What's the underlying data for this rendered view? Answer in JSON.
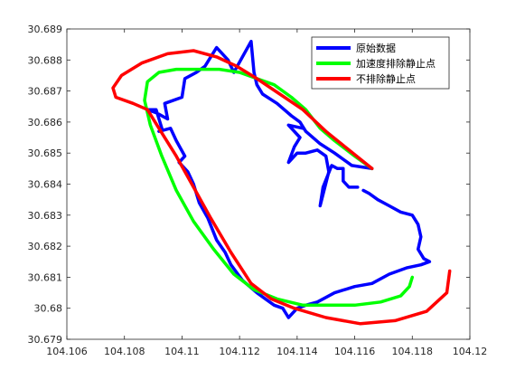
{
  "chart_data": {
    "type": "line",
    "title": "",
    "xlabel": "",
    "ylabel": "",
    "xlim": [
      104.106,
      104.12
    ],
    "ylim": [
      30.679,
      30.689
    ],
    "grid": false,
    "legend_position": "top-right",
    "x_ticks": [
      "104.106",
      "104.108",
      "104.11",
      "104.112",
      "104.114",
      "104.116",
      "104.118",
      "104.12"
    ],
    "y_ticks": [
      "30.679",
      "30.68",
      "30.681",
      "30.682",
      "30.683",
      "30.684",
      "30.685",
      "30.686",
      "30.687",
      "30.688",
      "30.689"
    ],
    "x_tick_values": [
      104.106,
      104.108,
      104.11,
      104.112,
      104.114,
      104.116,
      104.118,
      104.12
    ],
    "y_tick_values": [
      30.679,
      30.68,
      30.681,
      30.682,
      30.683,
      30.684,
      30.685,
      30.686,
      30.687,
      30.688,
      30.689
    ],
    "series": [
      {
        "name": "原始数据",
        "color": "#0000ff",
        "points": [
          [
            104.1166,
            30.6845
          ],
          [
            104.1159,
            30.6846
          ],
          [
            104.1153,
            30.685
          ],
          [
            104.1148,
            30.6853
          ],
          [
            104.1143,
            30.6857
          ],
          [
            104.1141,
            30.686
          ],
          [
            104.1138,
            30.6862
          ],
          [
            104.1133,
            30.6866
          ],
          [
            104.1128,
            30.6869
          ],
          [
            104.1126,
            30.6872
          ],
          [
            104.1125,
            30.6876
          ],
          [
            104.1124,
            30.6886
          ],
          [
            104.1118,
            30.6876
          ],
          [
            104.1116,
            30.688
          ],
          [
            104.1112,
            30.6884
          ],
          [
            104.1108,
            30.6878
          ],
          [
            104.1105,
            30.6876
          ],
          [
            104.1103,
            30.6875
          ],
          [
            104.1101,
            30.6874
          ],
          [
            104.11,
            30.6868
          ],
          [
            104.1094,
            30.6866
          ],
          [
            104.1095,
            30.6861
          ],
          [
            104.1091,
            30.6863
          ],
          [
            104.1088,
            30.6864
          ],
          [
            104.1091,
            30.6864
          ],
          [
            104.1093,
            30.6858
          ],
          [
            104.1092,
            30.6857
          ],
          [
            104.1096,
            30.6858
          ],
          [
            104.1098,
            30.6854
          ],
          [
            104.1101,
            30.6849
          ],
          [
            104.1099,
            30.6847
          ],
          [
            104.1102,
            30.6844
          ],
          [
            104.1104,
            30.684
          ],
          [
            104.1106,
            30.6834
          ],
          [
            104.1109,
            30.6829
          ],
          [
            104.1112,
            30.6822
          ],
          [
            104.1115,
            30.6818
          ],
          [
            104.1117,
            30.6814
          ],
          [
            104.1121,
            30.6809
          ],
          [
            104.1126,
            30.6805
          ],
          [
            104.1129,
            30.6803
          ],
          [
            104.1132,
            30.6801
          ],
          [
            104.1135,
            30.68
          ],
          [
            104.1137,
            30.6797
          ],
          [
            104.114,
            30.68
          ],
          [
            104.1143,
            30.6801
          ],
          [
            104.1147,
            30.6802
          ],
          [
            104.1153,
            30.6805
          ],
          [
            104.116,
            30.6807
          ],
          [
            104.1166,
            30.6808
          ],
          [
            104.1172,
            30.6811
          ],
          [
            104.1178,
            30.6813
          ],
          [
            104.1183,
            30.6814
          ],
          [
            104.1186,
            30.6815
          ],
          [
            104.1184,
            30.6816
          ],
          [
            104.1182,
            30.6819
          ],
          [
            104.1183,
            30.6823
          ],
          [
            104.1182,
            30.6827
          ],
          [
            104.118,
            30.683
          ],
          [
            104.1176,
            30.6831
          ],
          [
            104.1172,
            30.6833
          ],
          [
            104.1168,
            30.6835
          ],
          [
            104.1165,
            30.6837
          ],
          [
            104.1163,
            30.6838
          ],
          null,
          [
            104.1161,
            30.6839
          ],
          [
            104.1158,
            30.6839
          ],
          [
            104.1156,
            30.6841
          ],
          [
            104.1156,
            30.6845
          ],
          [
            104.1154,
            30.6845
          ],
          [
            104.1152,
            30.6846
          ],
          [
            104.1149,
            30.6839
          ],
          [
            104.1148,
            30.6833
          ],
          [
            104.1151,
            30.6844
          ],
          [
            104.115,
            30.6849
          ],
          [
            104.1147,
            30.6851
          ],
          [
            104.1143,
            30.685
          ],
          [
            104.114,
            30.685
          ],
          [
            104.1137,
            30.6847
          ],
          [
            104.1139,
            30.6852
          ],
          [
            104.1141,
            30.6855
          ],
          [
            104.1137,
            30.6859
          ],
          [
            104.1142,
            30.6858
          ]
        ]
      },
      {
        "name": "加速度排除静止点",
        "color": "#00ff00",
        "points": [
          [
            104.1166,
            30.6845
          ],
          [
            104.116,
            30.6849
          ],
          [
            104.1153,
            30.6854
          ],
          [
            104.1148,
            30.6858
          ],
          [
            104.1143,
            30.6864
          ],
          [
            104.1138,
            30.6868
          ],
          [
            104.1132,
            30.6872
          ],
          [
            104.1126,
            30.6874
          ],
          [
            104.112,
            30.6876
          ],
          [
            104.1113,
            30.6877
          ],
          [
            104.1105,
            30.6877
          ],
          [
            104.1098,
            30.6877
          ],
          [
            104.1092,
            30.6876
          ],
          [
            104.1088,
            30.6873
          ],
          [
            104.1087,
            30.6867
          ],
          [
            104.1089,
            30.6859
          ],
          [
            104.1093,
            30.6849
          ],
          [
            104.1098,
            30.6838
          ],
          [
            104.1104,
            30.6828
          ],
          [
            104.1111,
            30.6819
          ],
          [
            104.1118,
            30.6811
          ],
          [
            104.1125,
            30.6806
          ],
          [
            104.1133,
            30.6803
          ],
          [
            104.1142,
            30.6801
          ],
          [
            104.1151,
            30.6801
          ],
          [
            104.116,
            30.6801
          ],
          [
            104.1169,
            30.6802
          ],
          [
            104.1176,
            30.6804
          ],
          [
            104.1179,
            30.6807
          ],
          [
            104.118,
            30.681
          ]
        ]
      },
      {
        "name": "不排除静止点",
        "color": "#ff0000",
        "points": [
          [
            104.1166,
            30.6845
          ],
          [
            104.1158,
            30.6851
          ],
          [
            104.115,
            30.6857
          ],
          [
            104.1142,
            30.6864
          ],
          [
            104.1134,
            30.6869
          ],
          [
            104.1126,
            30.6874
          ],
          [
            104.1119,
            30.6878
          ],
          [
            104.1112,
            30.6881
          ],
          [
            104.1104,
            30.6883
          ],
          [
            104.1095,
            30.6882
          ],
          [
            104.1086,
            30.6879
          ],
          [
            104.1079,
            30.6875
          ],
          [
            104.1076,
            30.6871
          ],
          [
            104.1077,
            30.6868
          ],
          [
            104.1083,
            30.6866
          ],
          [
            104.1088,
            30.6864
          ],
          [
            104.1092,
            30.6858
          ],
          [
            104.1098,
            30.6849
          ],
          [
            104.1104,
            30.6839
          ],
          [
            104.111,
            30.6829
          ],
          [
            104.1117,
            30.6818
          ],
          [
            104.1124,
            30.6808
          ],
          [
            104.1131,
            30.6803
          ],
          [
            104.1139,
            30.68
          ],
          [
            104.115,
            30.6797
          ],
          [
            104.1162,
            30.6795
          ],
          [
            104.1174,
            30.6796
          ],
          [
            104.1185,
            30.6799
          ],
          [
            104.1192,
            30.6805
          ],
          [
            104.1193,
            30.6812
          ]
        ]
      }
    ]
  }
}
